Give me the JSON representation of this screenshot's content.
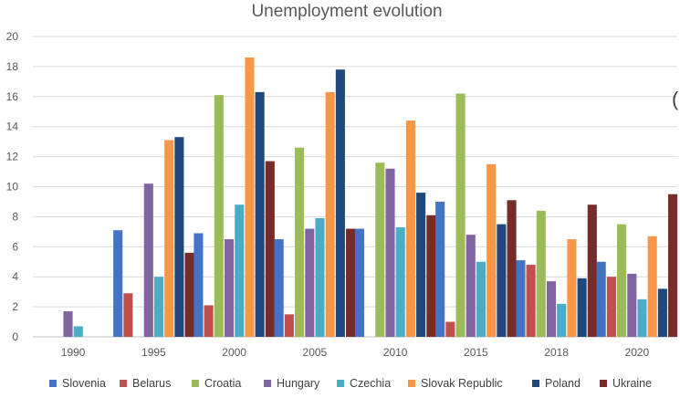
{
  "chart_data": {
    "type": "bar",
    "title": "Unemployment evolution",
    "xlabel": "",
    "ylabel": "",
    "ylim": [
      0,
      20
    ],
    "yticks": [
      0,
      2,
      4,
      6,
      8,
      10,
      12,
      14,
      16,
      18,
      20
    ],
    "grid": true,
    "legend": "bottom",
    "categories": [
      "1990",
      "1995",
      "2000",
      "2005",
      "2010",
      "2015",
      "2018",
      "2020"
    ],
    "series": [
      {
        "name": "Slovenia",
        "color": "#4472c4",
        "values": [
          null,
          7.1,
          6.9,
          6.5,
          7.2,
          9.0,
          5.1,
          5.0
        ]
      },
      {
        "name": "Belarus",
        "color": "#c0504d",
        "values": [
          null,
          2.9,
          2.1,
          1.5,
          null,
          1.0,
          4.8,
          4.0
        ]
      },
      {
        "name": "Croatia",
        "color": "#9bbb59",
        "values": [
          null,
          null,
          16.1,
          12.6,
          11.6,
          16.2,
          8.4,
          7.5
        ]
      },
      {
        "name": "Hungary",
        "color": "#8064a2",
        "values": [
          1.7,
          10.2,
          6.5,
          7.2,
          11.2,
          6.8,
          3.7,
          4.2
        ]
      },
      {
        "name": "Czechia",
        "color": "#4bacc6",
        "values": [
          0.7,
          4.0,
          8.8,
          7.9,
          7.3,
          5.0,
          2.2,
          2.5
        ]
      },
      {
        "name": "Slovak Republic",
        "color": "#f79646",
        "values": [
          null,
          13.1,
          18.6,
          16.3,
          14.4,
          11.5,
          6.5,
          6.7
        ]
      },
      {
        "name": "Poland",
        "color": "#1f497d",
        "values": [
          null,
          13.3,
          16.3,
          17.8,
          9.6,
          7.5,
          3.9,
          3.2
        ]
      },
      {
        "name": "Ukraine",
        "color": "#772c2a",
        "values": [
          null,
          5.6,
          11.7,
          7.2,
          8.1,
          9.1,
          8.8,
          9.5
        ]
      }
    ]
  }
}
